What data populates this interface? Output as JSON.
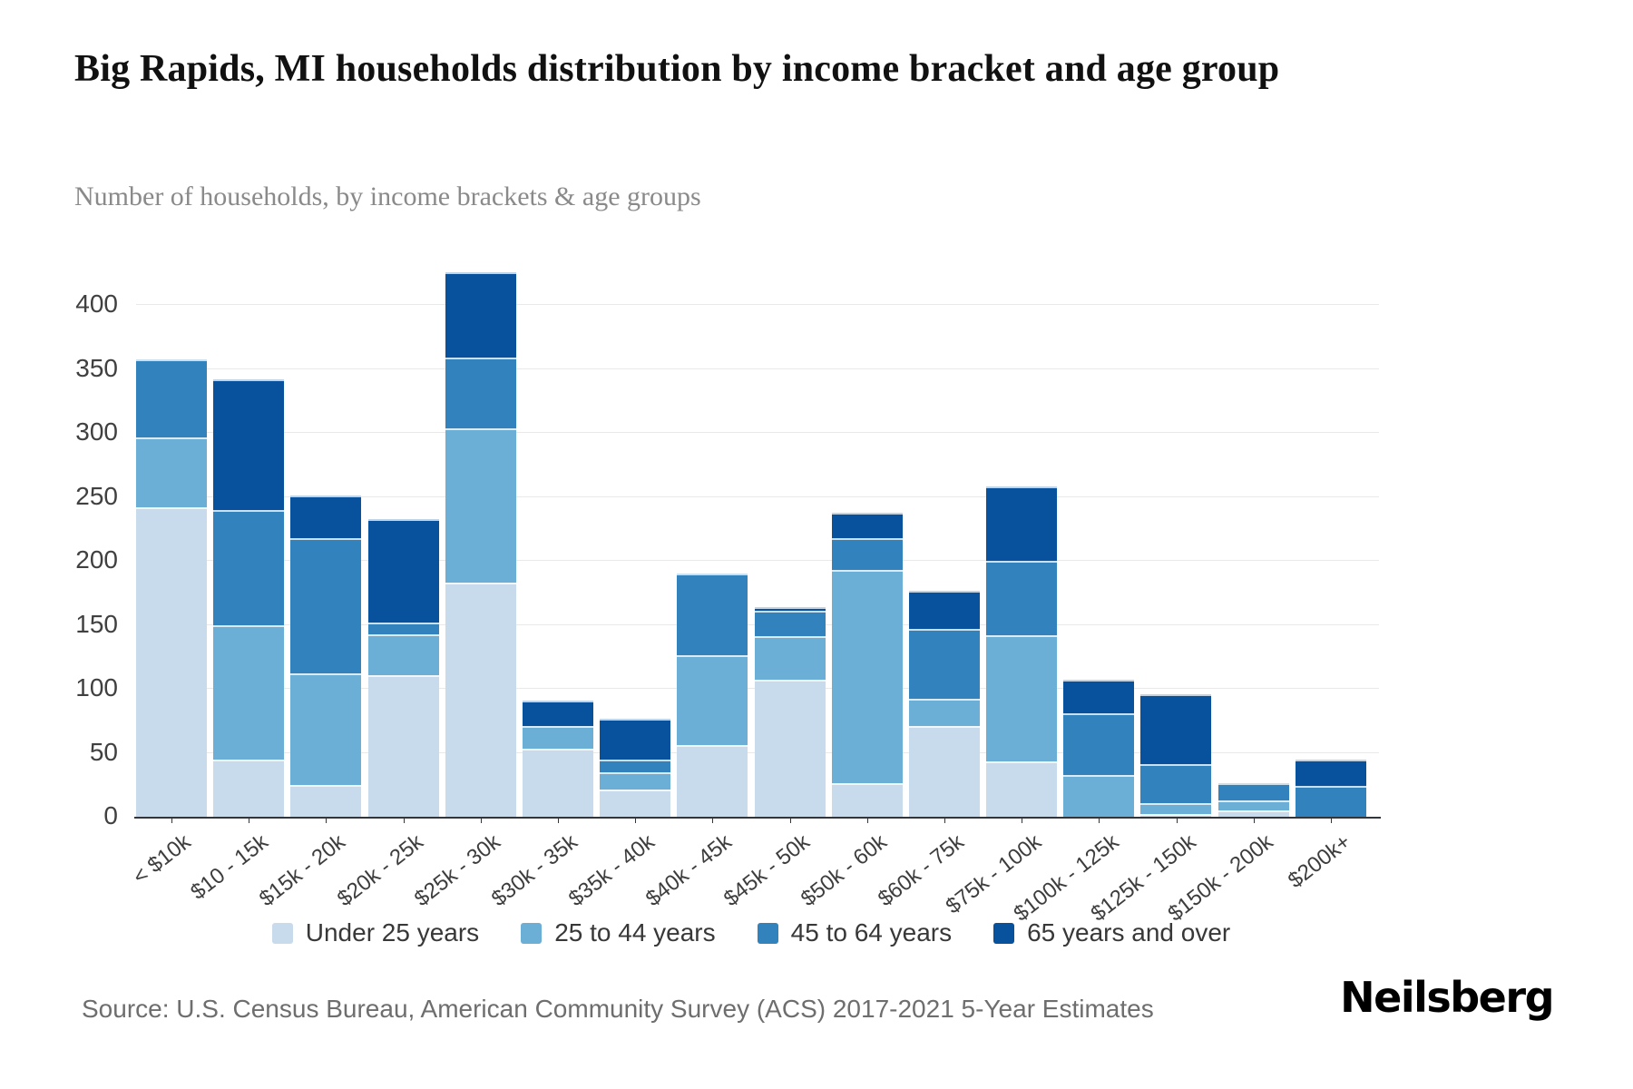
{
  "chart_data": {
    "type": "bar",
    "stacked": true,
    "title": "Big Rapids, MI households distribution by income bracket and age group",
    "subtitle": "Number of households, by income brackets & age groups",
    "xlabel": "",
    "ylabel": "",
    "ylim": [
      0,
      400
    ],
    "yticks": [
      0,
      50,
      100,
      150,
      200,
      250,
      300,
      350,
      400
    ],
    "grid": "horizontal",
    "legend_position": "bottom",
    "categories": [
      "< $10k",
      "$10 - 15k",
      "$15k - 20k",
      "$20k - 25k",
      "$25k - 30k",
      "$30k - 35k",
      "$35k - 40k",
      "$40k - 45k",
      "$45k - 50k",
      "$50k - 60k",
      "$60k - 75k",
      "$75k - 100k",
      "$100k - 125k",
      "$125k - 150k",
      "$150k - 200k",
      "$200k+"
    ],
    "series": [
      {
        "name": "Under 25 years",
        "color": "#c7dbec",
        "values": [
          242,
          45,
          25,
          111,
          183,
          53,
          21,
          56,
          107,
          26,
          71,
          43,
          0,
          2,
          5,
          0
        ]
      },
      {
        "name": "25 to 44 years",
        "color": "#6baed6",
        "values": [
          55,
          105,
          87,
          32,
          121,
          18,
          14,
          70,
          34,
          167,
          21,
          99,
          33,
          9,
          8,
          0
        ]
      },
      {
        "name": "45 to 64 years",
        "color": "#3182bd",
        "values": [
          61,
          90,
          106,
          9,
          55,
          0,
          10,
          64,
          20,
          25,
          55,
          58,
          48,
          30,
          13,
          24
        ]
      },
      {
        "name": "65 years and over",
        "color": "#08519c",
        "values": [
          0,
          102,
          33,
          81,
          67,
          20,
          32,
          0,
          3,
          20,
          30,
          58,
          26,
          55,
          0,
          21
        ]
      }
    ],
    "bar_totals": [
      358,
      342,
      251,
      233,
      426,
      91,
      77,
      190,
      164,
      238,
      177,
      258,
      107,
      96,
      26,
      45
    ]
  },
  "footer": {
    "source": "Source: U.S. Census Bureau, American Community Survey (ACS) 2017-2021 5-Year Estimates",
    "brand": "Neilsberg"
  }
}
